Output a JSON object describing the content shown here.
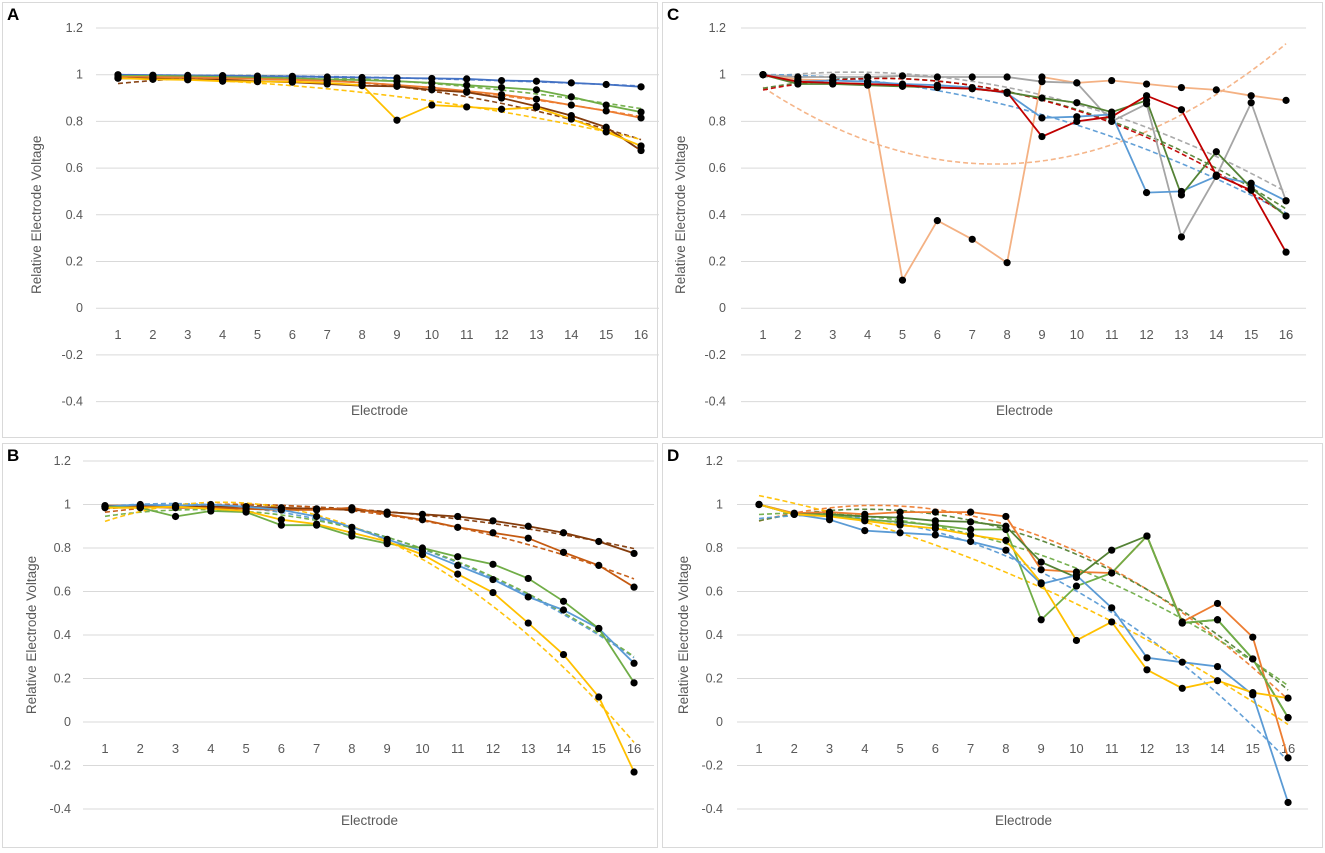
{
  "figure": {
    "panel_labels": [
      "A",
      "B",
      "C",
      "D"
    ]
  },
  "chart_data": [
    {
      "panel": "A",
      "type": "line",
      "xlabel": "Electrode",
      "ylabel": "Relative Electrode Voltage",
      "x": [
        1,
        2,
        3,
        4,
        5,
        6,
        7,
        8,
        9,
        10,
        11,
        12,
        13,
        14,
        15,
        16
      ],
      "ylim": [
        -0.4,
        1.2
      ],
      "yticks": [
        "-0.4",
        "-0.2",
        "0",
        "0.2",
        "0.4",
        "0.6",
        "0.8",
        "1",
        "1.2"
      ],
      "grid": true,
      "series": [
        {
          "name": "blue",
          "color": "#4472c4",
          "values": [
            1.0,
            0.998,
            0.997,
            0.996,
            0.994,
            0.993,
            0.99,
            0.988,
            0.986,
            0.984,
            0.982,
            0.975,
            0.972,
            0.965,
            0.958,
            0.948
          ]
        },
        {
          "name": "green",
          "color": "#70ad47",
          "values": [
            0.995,
            0.995,
            0.993,
            0.99,
            0.988,
            0.985,
            0.98,
            0.977,
            0.972,
            0.965,
            0.955,
            0.945,
            0.935,
            0.905,
            0.87,
            0.84
          ]
        },
        {
          "name": "orange",
          "color": "#ed7d31",
          "values": [
            0.99,
            0.99,
            0.988,
            0.985,
            0.982,
            0.978,
            0.974,
            0.966,
            0.956,
            0.945,
            0.93,
            0.915,
            0.895,
            0.87,
            0.845,
            0.815
          ]
        },
        {
          "name": "darkred",
          "color": "#843c0c",
          "values": [
            0.985,
            0.983,
            0.98,
            0.978,
            0.972,
            0.968,
            0.96,
            0.953,
            0.95,
            0.935,
            0.925,
            0.9,
            0.865,
            0.825,
            0.775,
            0.675
          ]
        },
        {
          "name": "yellow",
          "color": "#ffc000",
          "values": [
            0.985,
            0.98,
            0.978,
            0.972,
            0.97,
            0.97,
            0.965,
            0.955,
            0.805,
            0.87,
            0.862,
            0.852,
            0.86,
            0.81,
            0.755,
            0.695
          ]
        }
      ]
    },
    {
      "panel": "B",
      "type": "line",
      "xlabel": "Electrode",
      "ylabel": "Relative Electrode Voltage",
      "x": [
        1,
        2,
        3,
        4,
        5,
        6,
        7,
        8,
        9,
        10,
        11,
        12,
        13,
        14,
        15,
        16
      ],
      "ylim": [
        -0.4,
        1.2
      ],
      "yticks": [
        "-0.4",
        "-0.2",
        "0",
        "0.2",
        "0.4",
        "0.6",
        "0.8",
        "1",
        "1.2"
      ],
      "grid": true,
      "series": [
        {
          "name": "darkred",
          "color": "#843c0c",
          "values": [
            0.995,
            0.995,
            0.99,
            0.99,
            0.99,
            0.985,
            0.98,
            0.975,
            0.965,
            0.955,
            0.945,
            0.925,
            0.9,
            0.87,
            0.83,
            0.775
          ]
        },
        {
          "name": "orange",
          "color": "#c55a11",
          "values": [
            0.99,
            0.99,
            0.985,
            0.985,
            0.98,
            0.975,
            0.975,
            0.985,
            0.955,
            0.93,
            0.895,
            0.87,
            0.845,
            0.78,
            0.72,
            0.62
          ]
        },
        {
          "name": "blue",
          "color": "#5b9bd5",
          "values": [
            0.99,
            1.0,
            0.995,
            1.0,
            0.99,
            0.975,
            0.945,
            0.895,
            0.84,
            0.785,
            0.72,
            0.655,
            0.575,
            0.515,
            0.43,
            0.27
          ]
        },
        {
          "name": "green",
          "color": "#70ad47",
          "values": [
            0.99,
            0.985,
            0.945,
            0.97,
            0.965,
            0.905,
            0.905,
            0.855,
            0.82,
            0.8,
            0.76,
            0.725,
            0.66,
            0.555,
            0.43,
            0.18
          ]
        },
        {
          "name": "yellow",
          "color": "#ffc000",
          "values": [
            0.985,
            0.985,
            0.99,
            0.98,
            0.97,
            0.93,
            0.91,
            0.87,
            0.83,
            0.77,
            0.68,
            0.595,
            0.455,
            0.31,
            0.115,
            -0.23
          ]
        }
      ]
    },
    {
      "panel": "C",
      "type": "line",
      "xlabel": "Electrode",
      "ylabel": "Relative Electrode Voltage",
      "x": [
        1,
        2,
        3,
        4,
        5,
        6,
        7,
        8,
        9,
        10,
        11,
        12,
        13,
        14,
        15,
        16
      ],
      "ylim": [
        -0.4,
        1.2
      ],
      "yticks": [
        "-0.4",
        "-0.2",
        "0",
        "0.2",
        "0.4",
        "0.6",
        "0.8",
        "1",
        "1.2"
      ],
      "grid": true,
      "series": [
        {
          "name": "peach-outlier",
          "color": "#f4b183",
          "values": [
            1.0,
            0.98,
            0.975,
            0.97,
            0.12,
            0.375,
            0.295,
            0.195,
            0.99,
            0.965,
            0.975,
            0.96,
            0.945,
            0.935,
            0.91,
            0.89
          ]
        },
        {
          "name": "gray",
          "color": "#a5a5a5",
          "values": [
            1.0,
            0.99,
            0.99,
            0.99,
            0.995,
            0.99,
            0.99,
            0.99,
            0.97,
            0.965,
            0.8,
            0.875,
            0.305,
            0.565,
            0.88,
            0.46
          ]
        },
        {
          "name": "blue",
          "color": "#5b9bd5",
          "values": [
            1.0,
            0.97,
            0.975,
            0.97,
            0.96,
            0.955,
            0.945,
            0.92,
            0.815,
            0.82,
            0.83,
            0.495,
            0.5,
            0.565,
            0.535,
            0.46
          ]
        },
        {
          "name": "green",
          "color": "#548235",
          "values": [
            1.0,
            0.96,
            0.96,
            0.955,
            0.95,
            0.945,
            0.94,
            0.925,
            0.9,
            0.88,
            0.84,
            0.89,
            0.485,
            0.67,
            0.515,
            0.395
          ]
        },
        {
          "name": "darkred",
          "color": "#c00000",
          "values": [
            1.0,
            0.97,
            0.965,
            0.96,
            0.955,
            0.945,
            0.94,
            0.925,
            0.735,
            0.8,
            0.82,
            0.91,
            0.85,
            0.57,
            0.505,
            0.24
          ]
        }
      ]
    },
    {
      "panel": "D",
      "type": "line",
      "xlabel": "Electrode",
      "ylabel": "Relative Electrode Voltage",
      "x": [
        1,
        2,
        3,
        4,
        5,
        6,
        7,
        8,
        9,
        10,
        11,
        12,
        13,
        14,
        15,
        16
      ],
      "ylim": [
        -0.4,
        1.2
      ],
      "yticks": [
        "-0.4",
        "-0.2",
        "0",
        "0.2",
        "0.4",
        "0.6",
        "0.8",
        "1",
        "1.2"
      ],
      "grid": true,
      "series": [
        {
          "name": "orange",
          "color": "#ed7d31",
          "values": [
            1.0,
            0.96,
            0.965,
            0.955,
            0.965,
            0.965,
            0.965,
            0.945,
            0.7,
            0.69,
            0.685,
            0.855,
            0.46,
            0.545,
            0.39,
            -0.165
          ]
        },
        {
          "name": "darkgreen",
          "color": "#548235",
          "values": [
            1.0,
            0.955,
            0.955,
            0.945,
            0.94,
            0.925,
            0.92,
            0.9,
            0.735,
            0.665,
            0.79,
            0.855,
            0.455,
            0.47,
            0.29,
            0.02
          ]
        },
        {
          "name": "green",
          "color": "#70ad47",
          "values": [
            1.0,
            0.955,
            0.95,
            0.93,
            0.92,
            0.905,
            0.885,
            0.885,
            0.47,
            0.625,
            0.685,
            0.855,
            0.455,
            0.47,
            0.29,
            0.02
          ]
        },
        {
          "name": "blue",
          "color": "#5b9bd5",
          "values": [
            1.0,
            0.955,
            0.93,
            0.88,
            0.87,
            0.86,
            0.83,
            0.79,
            0.635,
            0.675,
            0.525,
            0.295,
            0.275,
            0.255,
            0.125,
            -0.37
          ]
        },
        {
          "name": "yellow",
          "color": "#ffc000",
          "values": [
            1.0,
            0.955,
            0.945,
            0.925,
            0.905,
            0.89,
            0.86,
            0.835,
            0.64,
            0.375,
            0.46,
            0.24,
            0.155,
            0.19,
            0.135,
            0.11
          ]
        }
      ]
    }
  ]
}
